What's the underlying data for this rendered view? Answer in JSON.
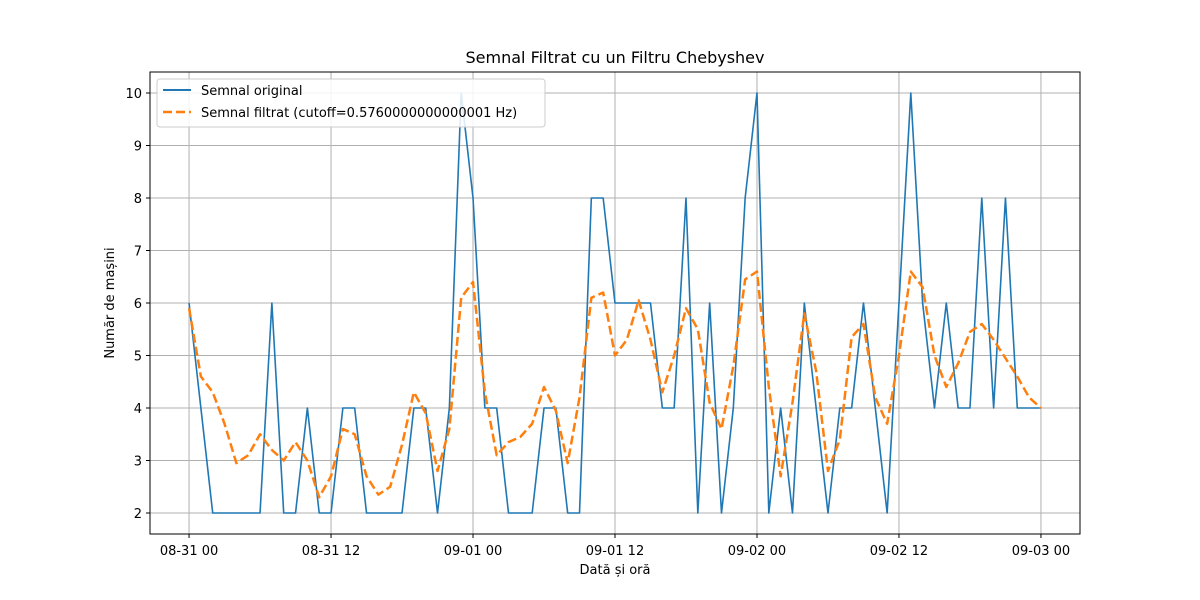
{
  "chart_data": {
    "type": "line",
    "title": "Semnal Filtrat cu un Filtru Chebyshev",
    "xlabel": "Dată și oră",
    "ylabel": "Număr de mașini",
    "grid": true,
    "legend_position": "top-left",
    "xlim": [
      -3.3,
      75.3
    ],
    "ylim": [
      1.6,
      10.4
    ],
    "x_ticks": [
      {
        "value": 0,
        "label": "08-31 00"
      },
      {
        "value": 12,
        "label": "08-31 12"
      },
      {
        "value": 24,
        "label": "09-01 00"
      },
      {
        "value": 36,
        "label": "09-01 12"
      },
      {
        "value": 48,
        "label": "09-02 00"
      },
      {
        "value": 60,
        "label": "09-02 12"
      },
      {
        "value": 72,
        "label": "09-03 00"
      }
    ],
    "y_ticks": [
      2,
      3,
      4,
      5,
      6,
      7,
      8,
      9,
      10
    ],
    "series": [
      {
        "name": "Semnal original",
        "color": "#1f77b4",
        "style": "solid",
        "x": [
          0,
          1,
          2,
          3,
          4,
          5,
          6,
          7,
          8,
          9,
          10,
          11,
          12,
          13,
          14,
          15,
          16,
          17,
          18,
          19,
          20,
          21,
          22,
          23,
          24,
          25,
          26,
          27,
          28,
          29,
          30,
          31,
          32,
          33,
          34,
          35,
          36,
          37,
          38,
          39,
          40,
          41,
          42,
          43,
          44,
          45,
          46,
          47,
          48,
          49,
          50,
          51,
          52,
          53,
          54,
          55,
          56,
          57,
          58,
          59,
          60,
          61,
          62,
          63,
          64,
          65,
          66,
          67,
          68,
          69,
          70,
          71,
          72
        ],
        "y": [
          6,
          4,
          2,
          2,
          2,
          2,
          2,
          6,
          2,
          2,
          4,
          2,
          2,
          4,
          4,
          2,
          2,
          2,
          2,
          4,
          4,
          2,
          4,
          10,
          8,
          4,
          4,
          2,
          2,
          2,
          4,
          4,
          2,
          2,
          8,
          8,
          6,
          6,
          6,
          6,
          4,
          4,
          8,
          2,
          6,
          2,
          4,
          8,
          10,
          2,
          4,
          2,
          6,
          4,
          2,
          4,
          4,
          6,
          4,
          2,
          6,
          10,
          6,
          4,
          6,
          4,
          4,
          8,
          4,
          8,
          4,
          4,
          4
        ]
      },
      {
        "name": "Semnal filtrat (cutoff=0.5760000000000001 Hz)",
        "color": "#ff7f0e",
        "style": "dashed",
        "x": [
          0,
          1,
          2,
          3,
          4,
          5,
          6,
          7,
          8,
          9,
          10,
          11,
          12,
          13,
          14,
          15,
          16,
          17,
          18,
          19,
          20,
          21,
          22,
          23,
          24,
          25,
          26,
          27,
          28,
          29,
          30,
          31,
          32,
          33,
          34,
          35,
          36,
          37,
          38,
          39,
          40,
          41,
          42,
          43,
          44,
          45,
          46,
          47,
          48,
          49,
          50,
          51,
          52,
          53,
          54,
          55,
          56,
          57,
          58,
          59,
          60,
          61,
          62,
          63,
          64,
          65,
          66,
          67,
          68,
          69,
          70,
          71,
          72
        ],
        "y": [
          5.9,
          4.6,
          4.3,
          3.7,
          2.95,
          3.1,
          3.5,
          3.2,
          3.0,
          3.35,
          3.0,
          2.3,
          2.7,
          3.6,
          3.5,
          2.7,
          2.35,
          2.5,
          3.3,
          4.3,
          3.9,
          2.8,
          3.6,
          6.1,
          6.4,
          4.3,
          3.1,
          3.35,
          3.45,
          3.7,
          4.4,
          3.95,
          2.95,
          4.2,
          6.1,
          6.2,
          5.0,
          5.3,
          6.05,
          5.3,
          4.3,
          5.0,
          5.9,
          5.5,
          4.1,
          3.6,
          4.8,
          6.45,
          6.6,
          4.4,
          2.7,
          4.1,
          5.8,
          4.7,
          2.8,
          3.4,
          5.35,
          5.6,
          4.2,
          3.7,
          5.0,
          6.6,
          6.3,
          5.0,
          4.4,
          4.85,
          5.45,
          5.6,
          5.3,
          4.95,
          4.6,
          4.2,
          4.0
        ]
      }
    ]
  }
}
